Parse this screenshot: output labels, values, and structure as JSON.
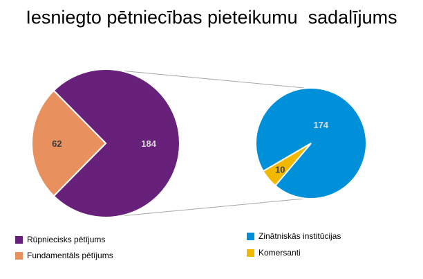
{
  "chart_data": {
    "type": "pie",
    "title": "Iesniegto pētniecības pieteikumu  sadalījums",
    "main_pie": {
      "slices": [
        {
          "label": "Rūpniecisks pētījums",
          "value": 184,
          "color": "#68217A"
        },
        {
          "label": "Fundamentāls pētījums",
          "value": 62,
          "color": "#E8915F"
        }
      ]
    },
    "secondary_pie": {
      "slices": [
        {
          "label": "Zinātniskās institūcijas",
          "value": 174,
          "color": "#0090DA"
        },
        {
          "label": "Komersanti",
          "value": 10,
          "color": "#F2B800"
        }
      ]
    },
    "legend": {
      "left": [
        "Rūpniecisks pētījums",
        "Fundamentāls pētījums"
      ],
      "right": [
        "Zinātniskās institūcijas",
        "Komersanti"
      ]
    }
  }
}
